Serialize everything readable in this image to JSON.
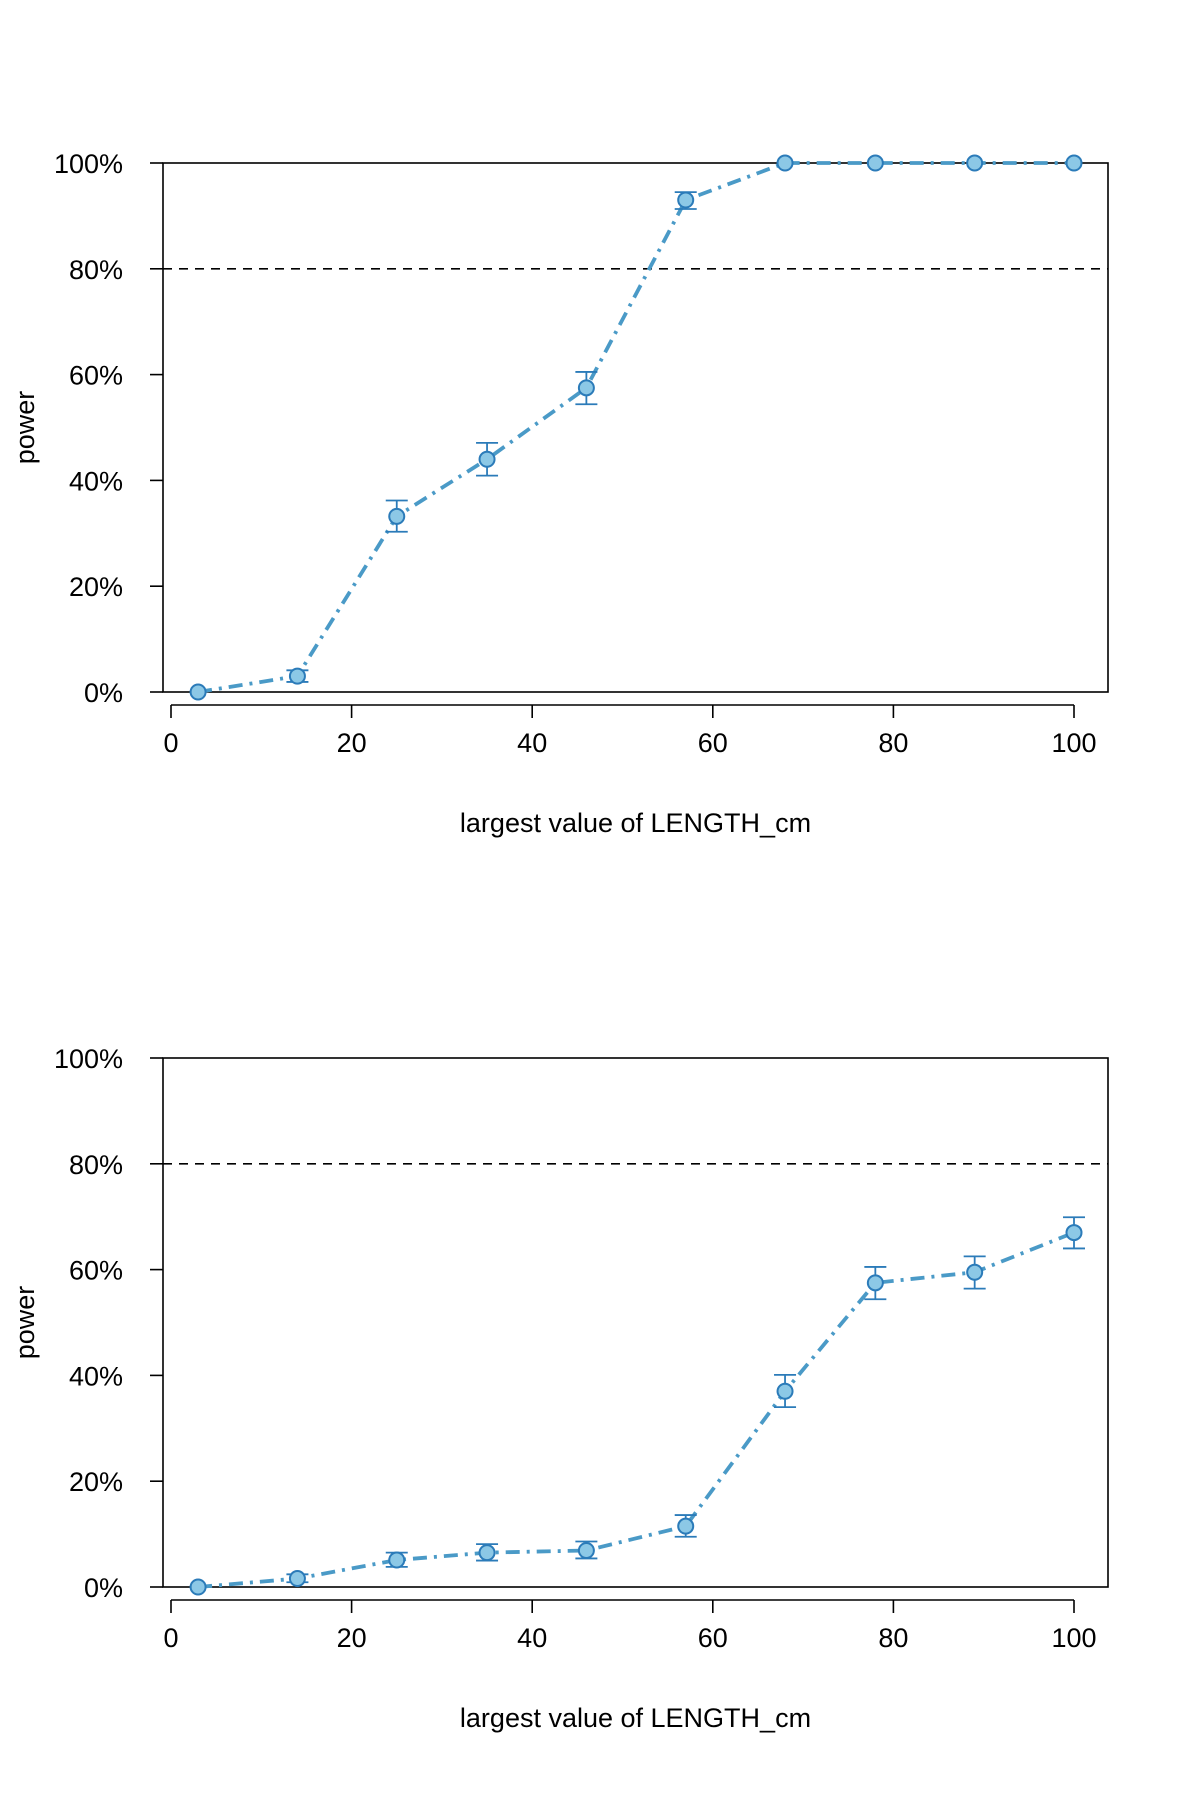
{
  "colors": {
    "line": "#4a9ac7",
    "marker_fill": "#8cc8e6",
    "marker_stroke": "#2b7bb9",
    "errorbar": "#2b7bb9",
    "reference_line": "#000000",
    "axis": "#000000"
  },
  "chart_data": [
    {
      "type": "line",
      "xlabel": "largest value of LENGTH_cm",
      "ylabel": "power",
      "xlim": [
        0,
        100
      ],
      "ylim": [
        0,
        100
      ],
      "x_ticks": [
        0,
        20,
        40,
        60,
        80,
        100
      ],
      "x_tick_labels": [
        "0",
        "20",
        "40",
        "60",
        "80",
        "100"
      ],
      "y_ticks": [
        0,
        20,
        40,
        60,
        80,
        100
      ],
      "y_tick_labels": [
        "0%",
        "20%",
        "40%",
        "60%",
        "80%",
        "100%"
      ],
      "reference_line": {
        "y": 80,
        "style": "dashed"
      },
      "series": [
        {
          "x": [
            3,
            14,
            25,
            35,
            46,
            57,
            68,
            78,
            89,
            100
          ],
          "y": [
            0,
            3,
            33.2,
            44,
            57.5,
            93,
            100,
            100,
            100,
            100
          ],
          "error_low": [
            0,
            1.9,
            30.3,
            40.9,
            54.4,
            91.3,
            100,
            100,
            100,
            100
          ],
          "error_high": [
            0,
            4.1,
            36.2,
            47.1,
            60.5,
            94.5,
            100,
            100,
            100,
            100
          ]
        }
      ],
      "line_style": "dashdot",
      "marker": "circle",
      "grid": false
    },
    {
      "type": "line",
      "xlabel": "largest value of LENGTH_cm",
      "ylabel": "power",
      "xlim": [
        0,
        100
      ],
      "ylim": [
        0,
        100
      ],
      "x_ticks": [
        0,
        20,
        40,
        60,
        80,
        100
      ],
      "x_tick_labels": [
        "0",
        "20",
        "40",
        "60",
        "80",
        "100"
      ],
      "y_ticks": [
        0,
        20,
        40,
        60,
        80,
        100
      ],
      "y_tick_labels": [
        "0%",
        "20%",
        "40%",
        "60%",
        "80%",
        "100%"
      ],
      "reference_line": {
        "y": 80,
        "style": "dashed"
      },
      "series": [
        {
          "x": [
            3,
            14,
            25,
            35,
            46,
            57,
            68,
            78,
            89,
            100
          ],
          "y": [
            0,
            1.6,
            5.1,
            6.5,
            6.9,
            11.5,
            37,
            57.5,
            59.5,
            67
          ],
          "error_low": [
            0,
            0.9,
            3.8,
            5.0,
            5.4,
            9.5,
            34.0,
            54.4,
            56.4,
            64.0
          ],
          "error_high": [
            0,
            2.4,
            6.5,
            8.1,
            8.6,
            13.6,
            40.1,
            60.5,
            62.5,
            69.9
          ]
        }
      ],
      "line_style": "dashdot",
      "marker": "circle",
      "grid": false
    }
  ]
}
